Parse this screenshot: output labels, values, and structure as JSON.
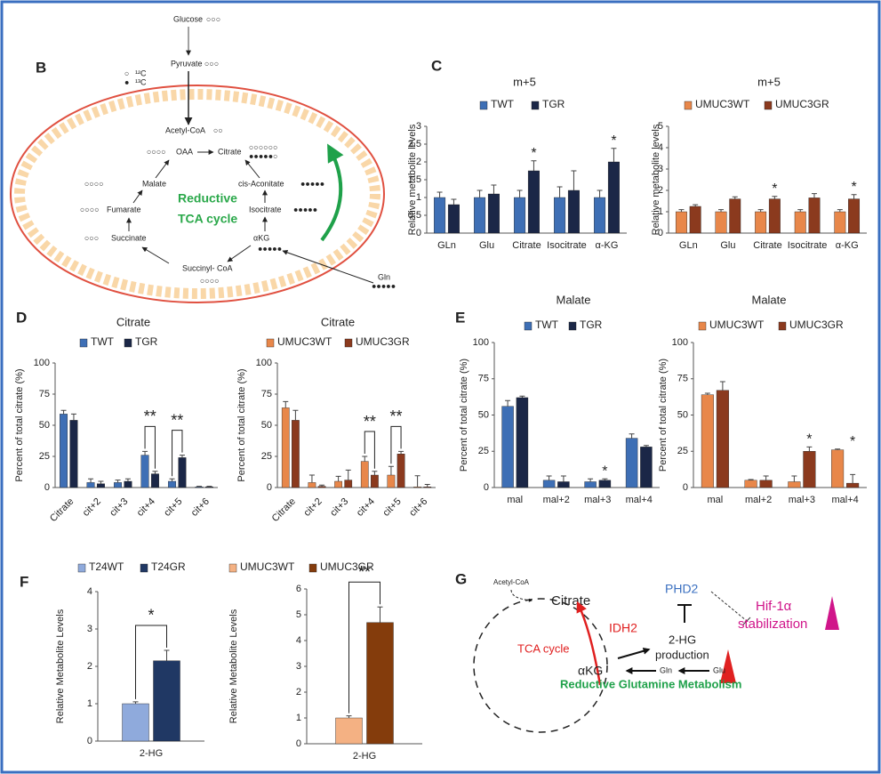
{
  "panel_labels": {
    "b": "B",
    "c": "C",
    "d": "D",
    "e": "E",
    "f": "F",
    "g": "G"
  },
  "diagram_b": {
    "glucose": "Glucose",
    "pyruvate": "Pyruvate",
    "c12": "¹²C",
    "c13": "¹³C",
    "acetyl_coa": "Acetyl-CoA",
    "oaa": "OAA",
    "citrate": "Citrate",
    "malate": "Malate",
    "cis_aconitate": "cis-Aconitate",
    "fumarate": "Fumarate",
    "isocitrate": "Isocitrate",
    "succinate": "Succinate",
    "akg": "αKG",
    "succinyl_coa": "Succinyl- CoA",
    "gln": "Gln",
    "reductive": "Reductive",
    "tca_cycle": "TCA cycle"
  },
  "diagram_g": {
    "acetyl_coa": "Acetyl-CoA",
    "citrate": "Citrate",
    "phd2": "PHD2",
    "hif": "Hif-1α",
    "stabilization": "stabilization",
    "idh2": "IDH2",
    "tca_cycle": "TCA cycle",
    "hg2": "2-HG",
    "production": "production",
    "akg": "αKG",
    "gln": "Gln",
    "glu": "Glu",
    "reductive": "Reductive Glutamine Metabolism"
  },
  "chart_data": [
    {
      "type": "bar",
      "title": "m+5",
      "y_label": "Relative metabolite levels",
      "categories": [
        "GLn",
        "Glu",
        "Citrate",
        "Isocitrate",
        "α-KG"
      ],
      "series": [
        {
          "name": "TWT",
          "color": "#3e6fb5",
          "values": [
            1,
            1,
            1,
            1,
            1
          ],
          "errors": [
            0.15,
            0.2,
            0.2,
            0.3,
            0.2
          ]
        },
        {
          "name": "TGR",
          "color": "#1b2747",
          "values": [
            0.8,
            1.1,
            1.75,
            1.2,
            2.0
          ],
          "errors": [
            0.15,
            0.25,
            0.28,
            0.55,
            0.38
          ]
        }
      ],
      "significance": [
        null,
        null,
        "*",
        null,
        "*"
      ],
      "ylim": [
        0,
        3
      ],
      "yticks": [
        0,
        0.5,
        1,
        1.5,
        2,
        2.5,
        3
      ]
    },
    {
      "type": "bar",
      "title": "m+5",
      "y_label": "Relative metabolite levels",
      "categories": [
        "GLn",
        "Glu",
        "Citrate",
        "Isocitrate",
        "α-KG"
      ],
      "series": [
        {
          "name": "UMUC3WT",
          "color": "#e8874a",
          "values": [
            1,
            1,
            1,
            1,
            1
          ],
          "errors": [
            0.1,
            0.1,
            0.1,
            0.1,
            0.1
          ]
        },
        {
          "name": "UMUC3GR",
          "color": "#8b3a1e",
          "values": [
            1.25,
            1.6,
            1.6,
            1.65,
            1.6
          ],
          "errors": [
            0.08,
            0.1,
            0.12,
            0.2,
            0.2
          ]
        }
      ],
      "significance": [
        null,
        null,
        "*",
        null,
        "*"
      ],
      "ylim": [
        0,
        5
      ],
      "yticks": [
        0,
        1,
        2,
        3,
        4,
        5
      ]
    },
    {
      "type": "bar",
      "title": "Citrate",
      "y_label": "Percent of total citrate (%)",
      "categories": [
        "Citrate",
        "cit+2",
        "cit+3",
        "cit+4",
        "cit+5",
        "cit+6"
      ],
      "series": [
        {
          "name": "TWT",
          "color": "#3e6fb5",
          "values": [
            59,
            4,
            4,
            26,
            5,
            0.5
          ],
          "errors": [
            3,
            3,
            2,
            3,
            2,
            0.5
          ]
        },
        {
          "name": "TGR",
          "color": "#1b2747",
          "values": [
            54,
            3,
            5,
            11,
            24,
            0.5
          ],
          "errors": [
            5,
            2,
            2,
            2,
            2,
            0.5
          ]
        }
      ],
      "significance": [
        null,
        null,
        null,
        "**",
        "**",
        null
      ],
      "ylim": [
        0,
        100
      ],
      "yticks": [
        0,
        25,
        50,
        75,
        100
      ]
    },
    {
      "type": "bar",
      "title": "Citrate",
      "y_label": "Percent of total citrate (%)",
      "categories": [
        "Citrate",
        "cit+2",
        "cit+3",
        "cit+4",
        "cit+5",
        "cit+6"
      ],
      "series": [
        {
          "name": "UMUC3WT",
          "color": "#e8874a",
          "values": [
            64,
            4,
            5,
            21,
            10,
            0.5
          ],
          "errors": [
            5,
            6,
            4,
            4,
            7,
            9
          ]
        },
        {
          "name": "UMUC3GR",
          "color": "#8b3a1e",
          "values": [
            54,
            1,
            6,
            10,
            27,
            0.5
          ],
          "errors": [
            8,
            1,
            8,
            3,
            2,
            2
          ]
        }
      ],
      "significance": [
        null,
        null,
        null,
        "**",
        "**",
        null
      ],
      "ylim": [
        0,
        100
      ],
      "yticks": [
        0,
        25,
        50,
        75,
        100
      ]
    },
    {
      "type": "bar",
      "title": "Malate",
      "y_label": "Percent of total citrate (%)",
      "categories": [
        "mal",
        "mal+2",
        "mal+3",
        "mal+4"
      ],
      "series": [
        {
          "name": "TWT",
          "color": "#3e6fb5",
          "values": [
            56,
            5,
            4,
            34
          ],
          "errors": [
            4,
            3,
            2,
            3
          ]
        },
        {
          "name": "TGR",
          "color": "#1b2747",
          "values": [
            62,
            4,
            5,
            28
          ],
          "errors": [
            1,
            4,
            1,
            1
          ]
        }
      ],
      "significance": [
        null,
        null,
        "*",
        null
      ],
      "ylim": [
        0,
        100
      ],
      "yticks": [
        0,
        25,
        50,
        75,
        100
      ]
    },
    {
      "type": "bar",
      "title": "Malate",
      "y_label": "Percent of total citrate (%)",
      "categories": [
        "mal",
        "mal+2",
        "mal+3",
        "mal+4"
      ],
      "series": [
        {
          "name": "UMUC3WT",
          "color": "#e8874a",
          "values": [
            64,
            5,
            4,
            26
          ],
          "errors": [
            1,
            0.5,
            4,
            0.5
          ]
        },
        {
          "name": "UMUC3GR",
          "color": "#8b3a1e",
          "values": [
            67,
            5,
            25,
            3
          ],
          "errors": [
            6,
            3,
            3,
            6
          ]
        }
      ],
      "significance": [
        null,
        null,
        "*",
        "*"
      ],
      "ylim": [
        0,
        100
      ],
      "yticks": [
        0,
        25,
        50,
        75,
        100
      ]
    },
    {
      "type": "bar",
      "y_label": "Relative Metabolite Levels",
      "categories": [
        "2-HG"
      ],
      "series": [
        {
          "name": "T24WT",
          "color": "#8faadc",
          "values": [
            1
          ],
          "errors": [
            0.05
          ]
        },
        {
          "name": "T24GR",
          "color": "#203864",
          "values": [
            2.15
          ],
          "errors": [
            0.28
          ]
        }
      ],
      "significance": [
        "*"
      ],
      "ylim": [
        0,
        4
      ],
      "yticks": [
        0,
        1,
        2,
        3,
        4
      ]
    },
    {
      "type": "bar",
      "y_label": "Relative Metabolite Levels",
      "categories": [
        "2-HG"
      ],
      "series": [
        {
          "name": "UMUC3WT",
          "color": "#f4b183",
          "values": [
            1
          ],
          "errors": [
            0.08
          ]
        },
        {
          "name": "UMUC3GR",
          "color": "#843c0c",
          "values": [
            4.7
          ],
          "errors": [
            0.6
          ]
        }
      ],
      "significance": [
        "**"
      ],
      "ylim": [
        0,
        6
      ],
      "yticks": [
        0,
        1,
        2,
        3,
        4,
        5,
        6
      ]
    }
  ]
}
